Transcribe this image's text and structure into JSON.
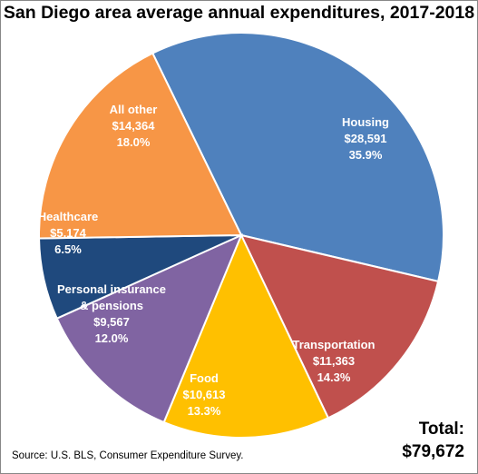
{
  "chart_data": {
    "type": "pie",
    "title": "San Diego area average annual expenditures, 2017-2018",
    "slices": [
      {
        "label": "Housing",
        "value_text": "$28,591",
        "percent_text": "35.9%",
        "value": 28591,
        "percent": 35.9,
        "color": "#4F81BD"
      },
      {
        "label": "Transportation",
        "value_text": "$11,363",
        "percent_text": "14.3%",
        "value": 11363,
        "percent": 14.3,
        "color": "#C0504D"
      },
      {
        "label": "Food",
        "value_text": "$10,613",
        "percent_text": "13.3%",
        "value": 10613,
        "percent": 13.3,
        "color": "#FFC000"
      },
      {
        "label": "Personal insurance & pensions",
        "value_text": "$9,567",
        "percent_text": "12.0%",
        "value": 9567,
        "percent": 12.0,
        "color": "#8064A2"
      },
      {
        "label": "Healthcare",
        "value_text": "$5,174",
        "percent_text": "6.5%",
        "value": 5174,
        "percent": 6.5,
        "color": "#1F497D"
      },
      {
        "label": "All other",
        "value_text": "$14,364",
        "percent_text": "18.0%",
        "value": 14364,
        "percent": 18.0,
        "color": "#F79646"
      }
    ],
    "total_label": "Total:",
    "total_value": "$79,672",
    "source": "Source: U.S. BLS, Consumer Expenditure Survey."
  }
}
